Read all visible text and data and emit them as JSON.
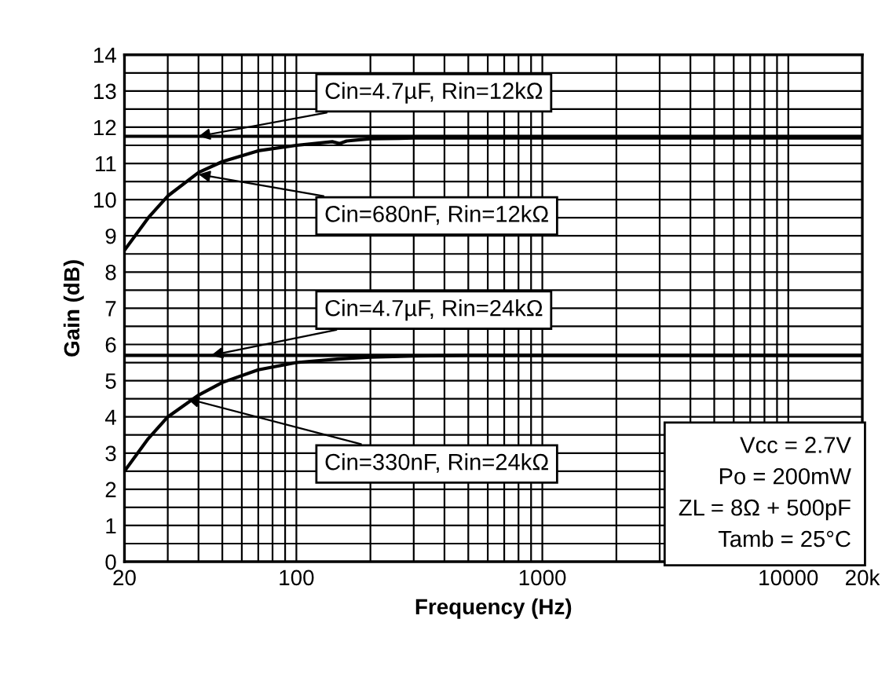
{
  "chart_data": {
    "type": "line",
    "xlabel": "Frequency (Hz)",
    "ylabel": "Gain (dB)",
    "log": "x",
    "xlim": [
      20,
      20000
    ],
    "xticks": [
      20,
      100,
      1000,
      10000,
      {
        "value": 20000,
        "label": "20k"
      }
    ],
    "ylim": [
      0,
      14
    ],
    "yticks": [
      0,
      1,
      2,
      3,
      4,
      5,
      6,
      7,
      8,
      9,
      10,
      11,
      12,
      13,
      14
    ],
    "grid": true,
    "line_style": "solid",
    "series": [
      {
        "color": "#000000",
        "x": [
          20,
          20000
        ],
        "values": [
          11.75,
          11.75
        ]
      },
      {
        "color": "#000000",
        "x": [
          20,
          25,
          30,
          40,
          50,
          70,
          100,
          140,
          150,
          160,
          200,
          300,
          500,
          1000,
          20000
        ],
        "values": [
          8.6,
          9.5,
          10.1,
          10.75,
          11.05,
          11.35,
          11.5,
          11.6,
          11.55,
          11.62,
          11.68,
          11.7,
          11.7,
          11.7,
          11.7
        ]
      },
      {
        "color": "#000000",
        "x": [
          20,
          20000
        ],
        "values": [
          5.7,
          5.7
        ]
      },
      {
        "color": "#000000",
        "x": [
          20,
          25,
          30,
          40,
          50,
          70,
          100,
          150,
          200,
          300,
          500,
          1000,
          20000
        ],
        "values": [
          2.5,
          3.4,
          4.0,
          4.6,
          4.95,
          5.3,
          5.5,
          5.6,
          5.65,
          5.68,
          5.7,
          5.7,
          5.7
        ]
      }
    ],
    "annotations": [
      {
        "text": "Cin=4.7µF, Rin=12kΩ",
        "x": 40,
        "y": 11.75
      },
      {
        "text": "Cin=680nF, Rin=12kΩ",
        "x": 40,
        "y": 10.7
      },
      {
        "text": "Cin=4.7µF, Rin=24kΩ",
        "x": 45,
        "y": 5.7
      },
      {
        "text": "Cin=330nF, Rin=24kΩ",
        "x": 36,
        "y": 4.5
      },
      "Vcc = 2.7V\nPo = 200mW\nZL = 8Ω + 500pF\nTamb = 25°C"
    ]
  }
}
